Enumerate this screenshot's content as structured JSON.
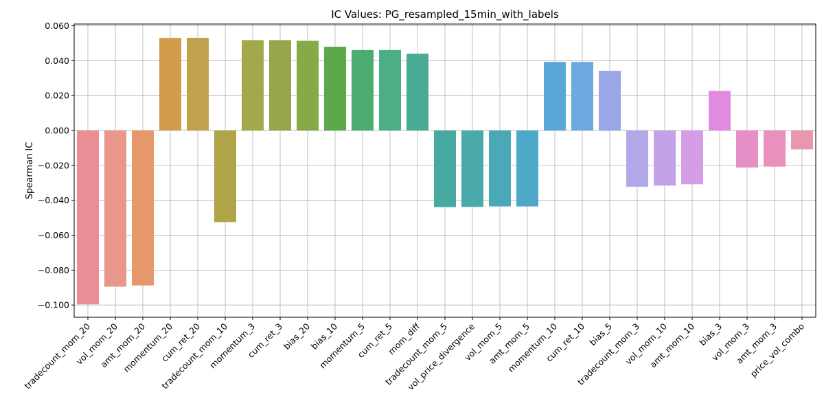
{
  "chart_data": {
    "type": "bar",
    "title": "IC Values: PG_resampled_15min_with_labels",
    "xlabel": "",
    "ylabel": "Spearman IC",
    "ylim": [
      -0.107,
      0.061
    ],
    "yticks": [
      -0.1,
      -0.08,
      -0.06,
      -0.04,
      -0.02,
      0.0,
      0.02,
      0.04,
      0.06
    ],
    "ytick_labels": [
      "−0.100",
      "−0.080",
      "−0.060",
      "−0.040",
      "−0.020",
      "0.000",
      "0.020",
      "0.040",
      "0.060"
    ],
    "grid": true,
    "categories": [
      "tradecount_mom_20",
      "vol_mom_20",
      "amt_mom_20",
      "momentum_20",
      "cum_ret_20",
      "tradecount_mom_10",
      "momentum_3",
      "cum_ret_3",
      "bias_20",
      "bias_10",
      "momentum_5",
      "cum_ret_5",
      "mom_diff",
      "tradecount_mom_5",
      "vol_price_divergence",
      "vol_mom_5",
      "amt_mom_5",
      "momentum_10",
      "cum_ret_10",
      "bias_5",
      "tradecount_mom_3",
      "vol_mom_10",
      "amt_mom_10",
      "bias_3",
      "vol_mom_3",
      "amt_mom_3",
      "price_vol_combo"
    ],
    "values": [
      -0.0996,
      -0.0895,
      -0.0888,
      0.0531,
      0.0531,
      -0.0525,
      0.0518,
      0.0518,
      0.0514,
      0.048,
      0.0461,
      0.0461,
      0.044,
      -0.0439,
      -0.0438,
      -0.0435,
      -0.0435,
      0.0393,
      0.0393,
      0.0342,
      -0.0322,
      -0.0316,
      -0.0308,
      0.0227,
      -0.0212,
      -0.0207,
      -0.0108
    ],
    "colors": [
      "#eb8d95",
      "#e9978a",
      "#e6986a",
      "#d29c4d",
      "#c0a14c",
      "#b0a449",
      "#a2a94b",
      "#96a64a",
      "#87a947",
      "#5ba94a",
      "#4dac6f",
      "#4bae84",
      "#4aab95",
      "#48a9a1",
      "#4aa9a9",
      "#4ba8b7",
      "#4ea8c7",
      "#5aa8d9",
      "#6ea9e2",
      "#99a7e6",
      "#b2a8e8",
      "#c3a2e8",
      "#d49de6",
      "#e18be0",
      "#e58fc6",
      "#e991bc",
      "#e897ad"
    ]
  }
}
